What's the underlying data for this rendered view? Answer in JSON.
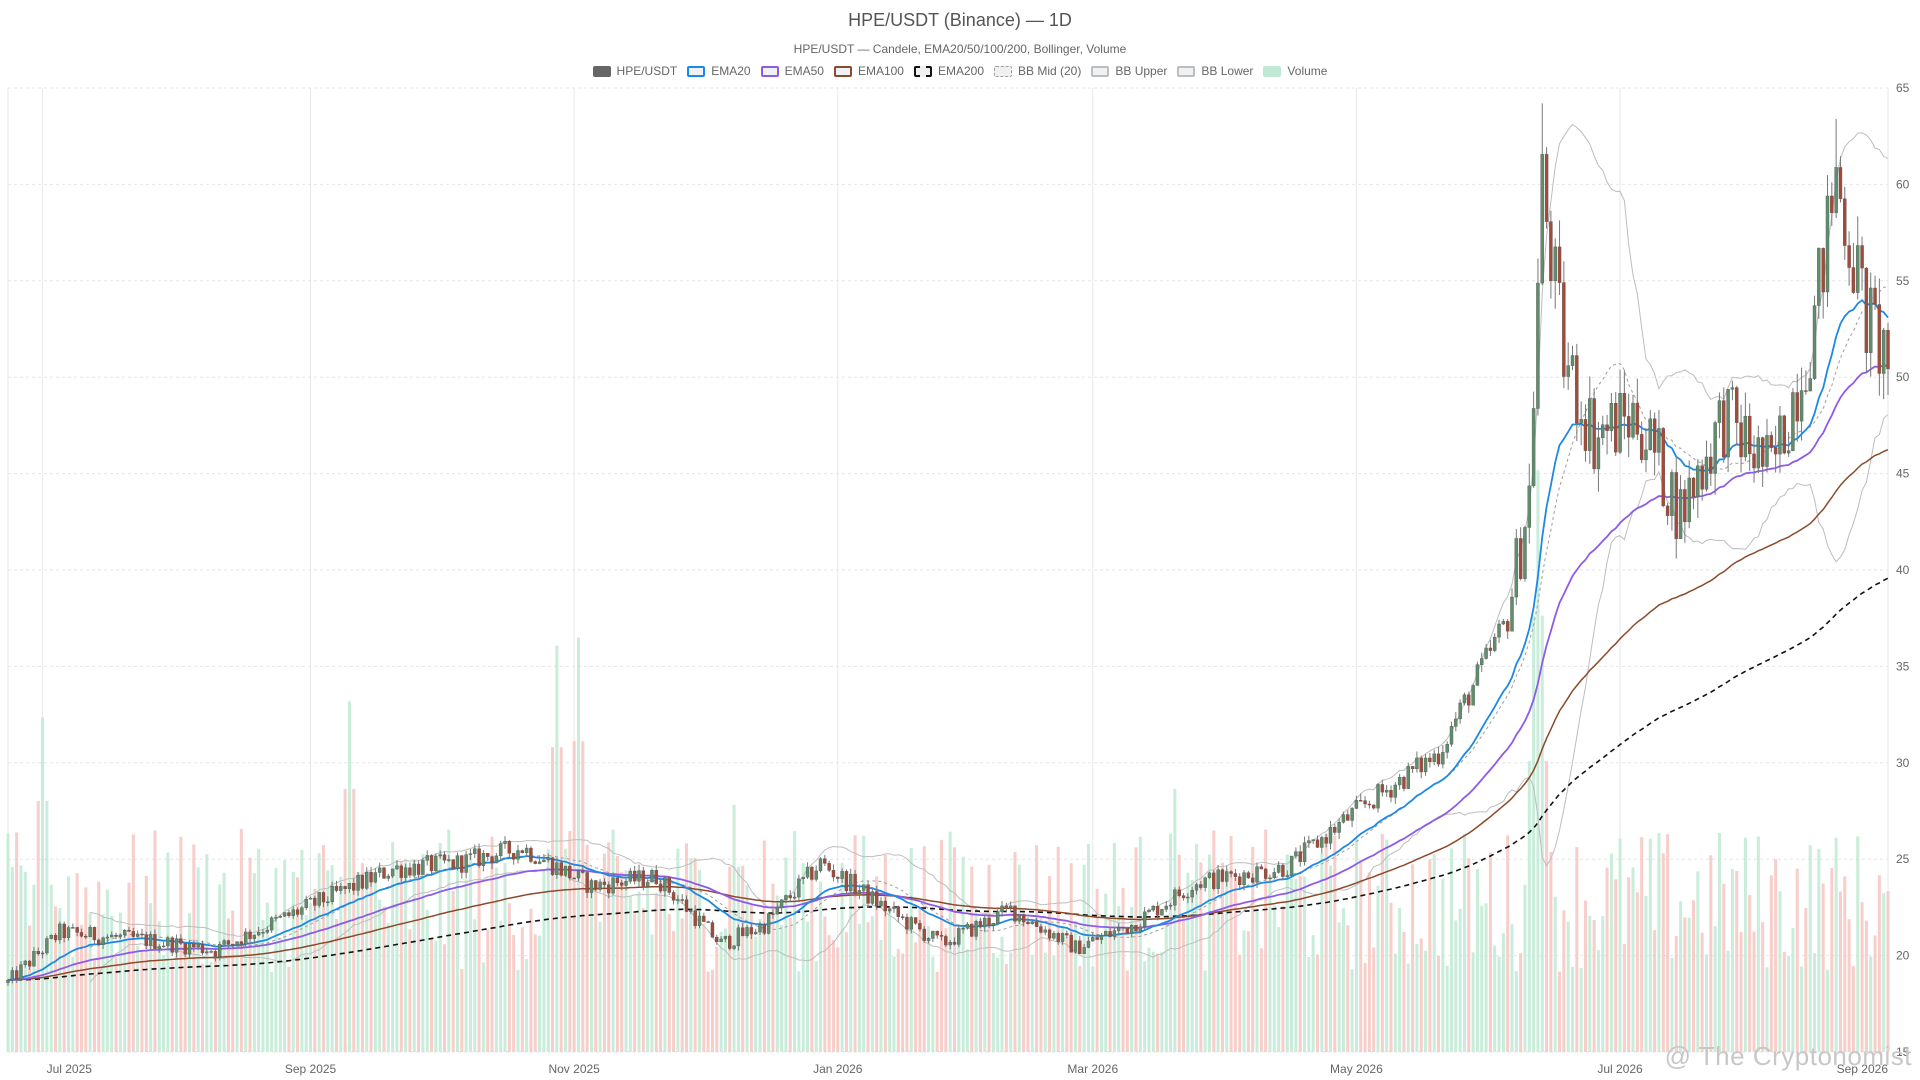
{
  "chart_data": {
    "type": "candlestick",
    "title": "HPE/USDT (Binance) — 1D",
    "subtitle": "HPE/USDT — Candele, EMA20/50/100/200, Bollinger, Volume",
    "legend": [
      {
        "name": "HPE/USDT",
        "color": "#666666",
        "style": "solid-fill"
      },
      {
        "name": "EMA20",
        "color": "#1e88e5",
        "style": "line"
      },
      {
        "name": "EMA50",
        "color": "#8e5be8",
        "style": "line"
      },
      {
        "name": "EMA100",
        "color": "#8b4a2b",
        "style": "line"
      },
      {
        "name": "EMA200",
        "color": "#111111",
        "style": "dashed"
      },
      {
        "name": "BB Mid (20)",
        "color": "#9e9e9e",
        "style": "dotted"
      },
      {
        "name": "BB Upper",
        "color": "#bdbdbd",
        "style": "line"
      },
      {
        "name": "BB Lower",
        "color": "#bdbdbd",
        "style": "line"
      },
      {
        "name": "Volume",
        "color": "#a5e0c0",
        "style": "fill"
      }
    ],
    "x_axis": {
      "start": "2025-06-23",
      "end": "2026-09-01",
      "ticks": [
        "Jul 2025",
        "Sep 2025",
        "Nov 2025",
        "Jan 2026",
        "Mar 2026",
        "May 2026",
        "Jul 2026",
        "Sep 2026"
      ]
    },
    "y_axis": {
      "min": 15,
      "max": 65,
      "ticks": [
        15,
        20,
        25,
        30,
        35,
        40,
        45,
        50,
        55,
        60,
        65
      ],
      "position": "right"
    },
    "grid": true,
    "legend_position": "top-center",
    "colors": {
      "up": "#5e8f6a",
      "down": "#a54a38",
      "volume_up": "#bfead3",
      "volume_down": "#f6c6c0"
    },
    "price_path": [
      {
        "date": "2025-06-23",
        "close": 18.6
      },
      {
        "date": "2025-07-05",
        "close": 21.2
      },
      {
        "date": "2025-07-25",
        "close": 20.8
      },
      {
        "date": "2025-08-10",
        "close": 20.3
      },
      {
        "date": "2025-09-01",
        "close": 22.6
      },
      {
        "date": "2025-09-20",
        "close": 24.5
      },
      {
        "date": "2025-10-05",
        "close": 24.8
      },
      {
        "date": "2025-10-20",
        "close": 25.6
      },
      {
        "date": "2025-11-05",
        "close": 23.6
      },
      {
        "date": "2025-11-20",
        "close": 24.1
      },
      {
        "date": "2025-12-05",
        "close": 20.6
      },
      {
        "date": "2025-12-15",
        "close": 21.6
      },
      {
        "date": "2025-12-28",
        "close": 24.8
      },
      {
        "date": "2026-01-15",
        "close": 22.0
      },
      {
        "date": "2026-01-25",
        "close": 20.6
      },
      {
        "date": "2026-02-10",
        "close": 22.4
      },
      {
        "date": "2026-02-25",
        "close": 20.4
      },
      {
        "date": "2026-03-10",
        "close": 21.6
      },
      {
        "date": "2026-03-25",
        "close": 23.8
      },
      {
        "date": "2026-04-15",
        "close": 24.6
      },
      {
        "date": "2026-05-01",
        "close": 27.5
      },
      {
        "date": "2026-05-20",
        "close": 30.5
      },
      {
        "date": "2026-06-05",
        "close": 37.5
      },
      {
        "date": "2026-06-10",
        "close": 44.0
      },
      {
        "date": "2026-06-13",
        "close": 60.0
      },
      {
        "date": "2026-06-18",
        "close": 51.0
      },
      {
        "date": "2026-06-25",
        "close": 47.0
      },
      {
        "date": "2026-07-05",
        "close": 48.0
      },
      {
        "date": "2026-07-15",
        "close": 43.0
      },
      {
        "date": "2026-07-25",
        "close": 48.0
      },
      {
        "date": "2026-08-05",
        "close": 45.0
      },
      {
        "date": "2026-08-15",
        "close": 53.0
      },
      {
        "date": "2026-08-20",
        "close": 60.5
      },
      {
        "date": "2026-08-27",
        "close": 53.0
      },
      {
        "date": "2026-09-01",
        "close": 51.0
      }
    ],
    "spikes": [
      {
        "date": "2026-06-13",
        "high": 64.2
      },
      {
        "date": "2026-08-20",
        "high": 63.4
      }
    ],
    "ema20_end": 52.8,
    "ema50_end": 49.8,
    "ema100_end": 44.2,
    "ema200_end": 37.0,
    "volume_peaks": [
      {
        "date": "2025-07-01",
        "value": 0.42
      },
      {
        "date": "2025-09-10",
        "value": 0.44
      },
      {
        "date": "2025-10-28",
        "value": 0.51
      },
      {
        "date": "2025-11-02",
        "value": 0.52
      },
      {
        "date": "2025-12-08",
        "value": 0.31
      },
      {
        "date": "2026-03-20",
        "value": 0.33
      },
      {
        "date": "2026-06-12",
        "value": 0.73
      }
    ]
  },
  "watermark": "@ The Cryptonomist"
}
